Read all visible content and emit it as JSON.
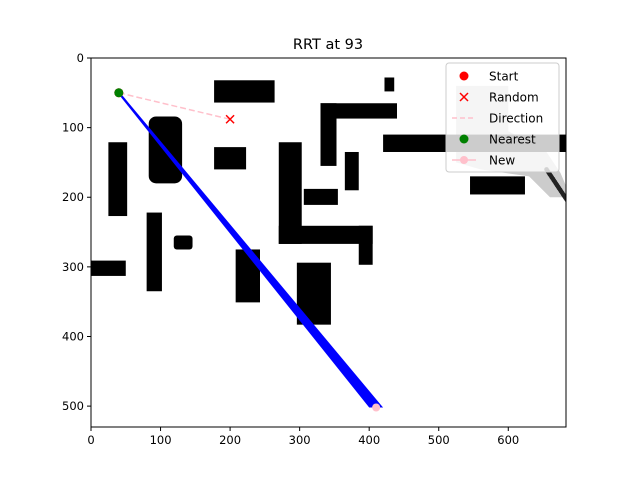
{
  "chart_data": {
    "type": "scatter",
    "title": "RRT at 93",
    "xlabel": "",
    "ylabel": "",
    "xlim": [
      0,
      683
    ],
    "ylim": [
      530,
      0
    ],
    "y_axis_inverted": true,
    "grid": false,
    "legend_placement": "top-right",
    "xticks": [
      0,
      100,
      200,
      300,
      400,
      500,
      600
    ],
    "yticks": [
      0,
      100,
      200,
      300,
      400,
      500
    ],
    "series": [
      {
        "name": "Start",
        "marker": "circle",
        "color": "#ff0000",
        "points": [
          [
            40,
            50
          ]
        ]
      },
      {
        "name": "Random",
        "marker": "x",
        "color": "#ff0000",
        "points": [
          [
            200,
            88
          ]
        ]
      },
      {
        "name": "Direction",
        "line": "dashed",
        "color": "#ffc0cb",
        "points": [
          [
            40,
            50
          ],
          [
            200,
            88
          ]
        ]
      },
      {
        "name": "Nearest",
        "marker": "circle",
        "color": "#008000",
        "points": [
          [
            40,
            50
          ]
        ]
      },
      {
        "name": "New",
        "marker": "circle",
        "line": "solid",
        "color": "#ffc0cb",
        "points": [
          [
            410,
            502
          ]
        ]
      }
    ],
    "tree_path": {
      "color": "#0000ff",
      "from": [
        40,
        50
      ],
      "to": [
        410,
        502
      ],
      "width_data": [
        2,
        10
      ]
    },
    "obstacles": {
      "color": "#000000",
      "rects": [
        {
          "x0": 177,
          "x1": 264,
          "y0": 32,
          "y1": 64
        },
        {
          "x0": 422,
          "x1": 436,
          "y0": 28,
          "y1": 48
        },
        {
          "x0": 330,
          "x1": 440,
          "y0": 65,
          "y1": 87
        },
        {
          "x0": 330,
          "x1": 353,
          "y0": 65,
          "y1": 155
        },
        {
          "x0": 420,
          "x1": 700,
          "y0": 110,
          "y1": 135
        },
        {
          "x0": 365,
          "x1": 385,
          "y0": 135,
          "y1": 190
        },
        {
          "x0": 306,
          "x1": 355,
          "y0": 188,
          "y1": 211
        },
        {
          "x0": 177,
          "x1": 223,
          "y0": 128,
          "y1": 160
        },
        {
          "x0": 25,
          "x1": 52,
          "y0": 121,
          "y1": 227
        },
        {
          "x0": 270,
          "x1": 303,
          "y0": 121,
          "y1": 267
        },
        {
          "x0": 270,
          "x1": 405,
          "y0": 241,
          "y1": 267
        },
        {
          "x0": 385,
          "x1": 405,
          "y0": 241,
          "y1": 297
        },
        {
          "x0": 80,
          "x1": 102,
          "y0": 222,
          "y1": 335
        },
        {
          "x0": 0,
          "x1": 50,
          "y0": 291,
          "y1": 313
        },
        {
          "x0": 208,
          "x1": 243,
          "y0": 275,
          "y1": 351
        },
        {
          "x0": 296,
          "x1": 345,
          "y0": 294,
          "y1": 383
        },
        {
          "x0": 545,
          "x1": 624,
          "y0": 170,
          "y1": 196
        }
      ],
      "rounded": [
        {
          "x0": 83,
          "x1": 131,
          "y0": 84,
          "y1": 180
        },
        {
          "x0": 119,
          "x1": 146,
          "y0": 255,
          "y1": 275
        }
      ]
    },
    "explored_region": {
      "color": "#cccccc",
      "polygon": [
        [
          525,
          40
        ],
        [
          600,
          40
        ],
        [
          600,
          105
        ],
        [
          655,
          135
        ],
        [
          675,
          165
        ],
        [
          690,
          200
        ],
        [
          660,
          200
        ],
        [
          630,
          170
        ],
        [
          560,
          160
        ],
        [
          525,
          150
        ]
      ]
    }
  }
}
